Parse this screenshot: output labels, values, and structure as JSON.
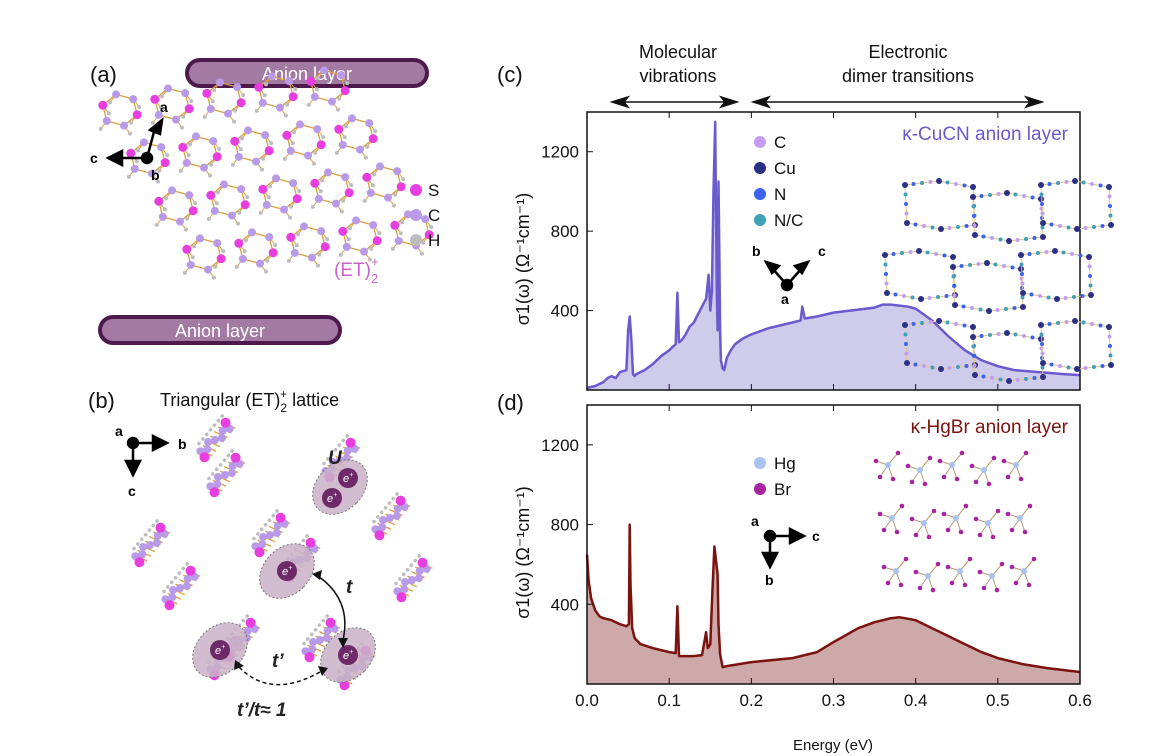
{
  "panel_a": {
    "label": "(a)",
    "anion_layer_top": "Anion layer",
    "anion_layer_bottom": "Anion layer",
    "axes": [
      "a",
      "b",
      "c"
    ],
    "legend": [
      {
        "label": "S",
        "color": "#e83ee0"
      },
      {
        "label": "C",
        "color": "#b99ae8"
      },
      {
        "label": "H",
        "color": "#bdbdbd"
      }
    ],
    "molecule_label": "(ET)",
    "molecule_sub": "2",
    "molecule_sup": "+"
  },
  "panel_b": {
    "label": "(b)",
    "title": "Triangular (ET)",
    "title_sub": "2",
    "title_sup": "+",
    "title_end": " lattice",
    "axes": [
      "a",
      "b",
      "c"
    ],
    "electron": "e",
    "electron_sup": "+",
    "U": "U",
    "t": "t",
    "tprime": "t’",
    "ratio": "t’/t≈ 1"
  },
  "header": {
    "molecular": [
      "Molecular",
      "vibrations"
    ],
    "electronic": [
      "Electronic",
      "dimer transitions"
    ]
  },
  "chart_data": [
    {
      "panel": "(c)",
      "type": "area",
      "title": "κ-CuCN anion layer",
      "color": "#6a5acd",
      "fill": "#cfcbea",
      "ylabel": "σ1(ω)  (Ω⁻¹cm⁻¹)",
      "xlim": [
        0,
        0.6
      ],
      "ylim": [
        0,
        1400
      ],
      "yticks": [
        400,
        800,
        1200
      ],
      "xticks": [
        0.0,
        0.1,
        0.2,
        0.3,
        0.4,
        0.5,
        0.6
      ],
      "axes": [
        "b",
        "c",
        "a"
      ],
      "legend": [
        {
          "label": "C",
          "color": "#c39ef0"
        },
        {
          "label": "Cu",
          "color": "#2b2f86"
        },
        {
          "label": "N",
          "color": "#3a63f0"
        },
        {
          "label": "N/C",
          "color": "#3fa0b8"
        }
      ],
      "x": [
        0,
        0.01,
        0.02,
        0.025,
        0.03,
        0.035,
        0.04,
        0.048,
        0.05,
        0.052,
        0.054,
        0.056,
        0.058,
        0.06,
        0.07,
        0.08,
        0.09,
        0.1,
        0.105,
        0.108,
        0.11,
        0.112,
        0.115,
        0.12,
        0.125,
        0.13,
        0.135,
        0.14,
        0.145,
        0.148,
        0.15,
        0.152,
        0.154,
        0.156,
        0.157,
        0.158,
        0.159,
        0.16,
        0.161,
        0.162,
        0.163,
        0.165,
        0.167,
        0.17,
        0.175,
        0.18,
        0.19,
        0.2,
        0.22,
        0.25,
        0.26,
        0.262,
        0.265,
        0.28,
        0.3,
        0.33,
        0.35,
        0.36,
        0.37,
        0.38,
        0.39,
        0.4,
        0.42,
        0.44,
        0.46,
        0.48,
        0.5,
        0.52,
        0.55,
        0.58,
        0.6
      ],
      "y": [
        10,
        20,
        40,
        60,
        70,
        60,
        90,
        100,
        300,
        370,
        250,
        80,
        70,
        80,
        100,
        130,
        170,
        200,
        220,
        230,
        490,
        240,
        250,
        280,
        320,
        340,
        380,
        420,
        460,
        580,
        400,
        500,
        1000,
        1350,
        900,
        500,
        300,
        1050,
        700,
        300,
        150,
        110,
        100,
        160,
        200,
        230,
        260,
        280,
        310,
        340,
        350,
        420,
        360,
        370,
        390,
        405,
        415,
        430,
        430,
        425,
        420,
        410,
        350,
        270,
        200,
        150,
        120,
        100,
        90,
        80,
        75
      ]
    },
    {
      "panel": "(d)",
      "type": "area",
      "title": "κ-HgBr anion layer",
      "color": "#7b1410",
      "fill": "#cda9a9",
      "ylabel": "σ1(ω)  (Ω⁻¹cm⁻¹)",
      "xlabel": "Energy (eV)",
      "xlim": [
        0,
        0.6
      ],
      "ylim": [
        0,
        1400
      ],
      "yticks": [
        400,
        800,
        1200
      ],
      "xticks": [
        0.0,
        0.1,
        0.2,
        0.3,
        0.4,
        0.5,
        0.6
      ],
      "xticklabels": [
        "0.0",
        "0.1",
        "0.2",
        "0.3",
        "0.4",
        "0.5",
        "0.6"
      ],
      "axes": [
        "a",
        "c",
        "b"
      ],
      "legend": [
        {
          "label": "Hg",
          "color": "#a9c2f0"
        },
        {
          "label": "Br",
          "color": "#a8239f"
        }
      ],
      "x": [
        0,
        0.002,
        0.005,
        0.01,
        0.015,
        0.02,
        0.03,
        0.04,
        0.048,
        0.051,
        0.052,
        0.053,
        0.055,
        0.058,
        0.065,
        0.08,
        0.1,
        0.108,
        0.11,
        0.112,
        0.13,
        0.14,
        0.145,
        0.147,
        0.15,
        0.153,
        0.155,
        0.157,
        0.159,
        0.16,
        0.162,
        0.165,
        0.17,
        0.2,
        0.25,
        0.28,
        0.3,
        0.33,
        0.35,
        0.37,
        0.38,
        0.4,
        0.42,
        0.45,
        0.48,
        0.5,
        0.53,
        0.56,
        0.6
      ],
      "y": [
        650,
        520,
        430,
        370,
        340,
        330,
        320,
        300,
        290,
        300,
        800,
        500,
        280,
        230,
        200,
        180,
        160,
        155,
        390,
        140,
        140,
        145,
        260,
        180,
        200,
        500,
        690,
        620,
        550,
        300,
        150,
        85,
        90,
        110,
        130,
        160,
        210,
        280,
        310,
        330,
        335,
        320,
        280,
        220,
        160,
        130,
        100,
        80,
        60
      ]
    }
  ]
}
